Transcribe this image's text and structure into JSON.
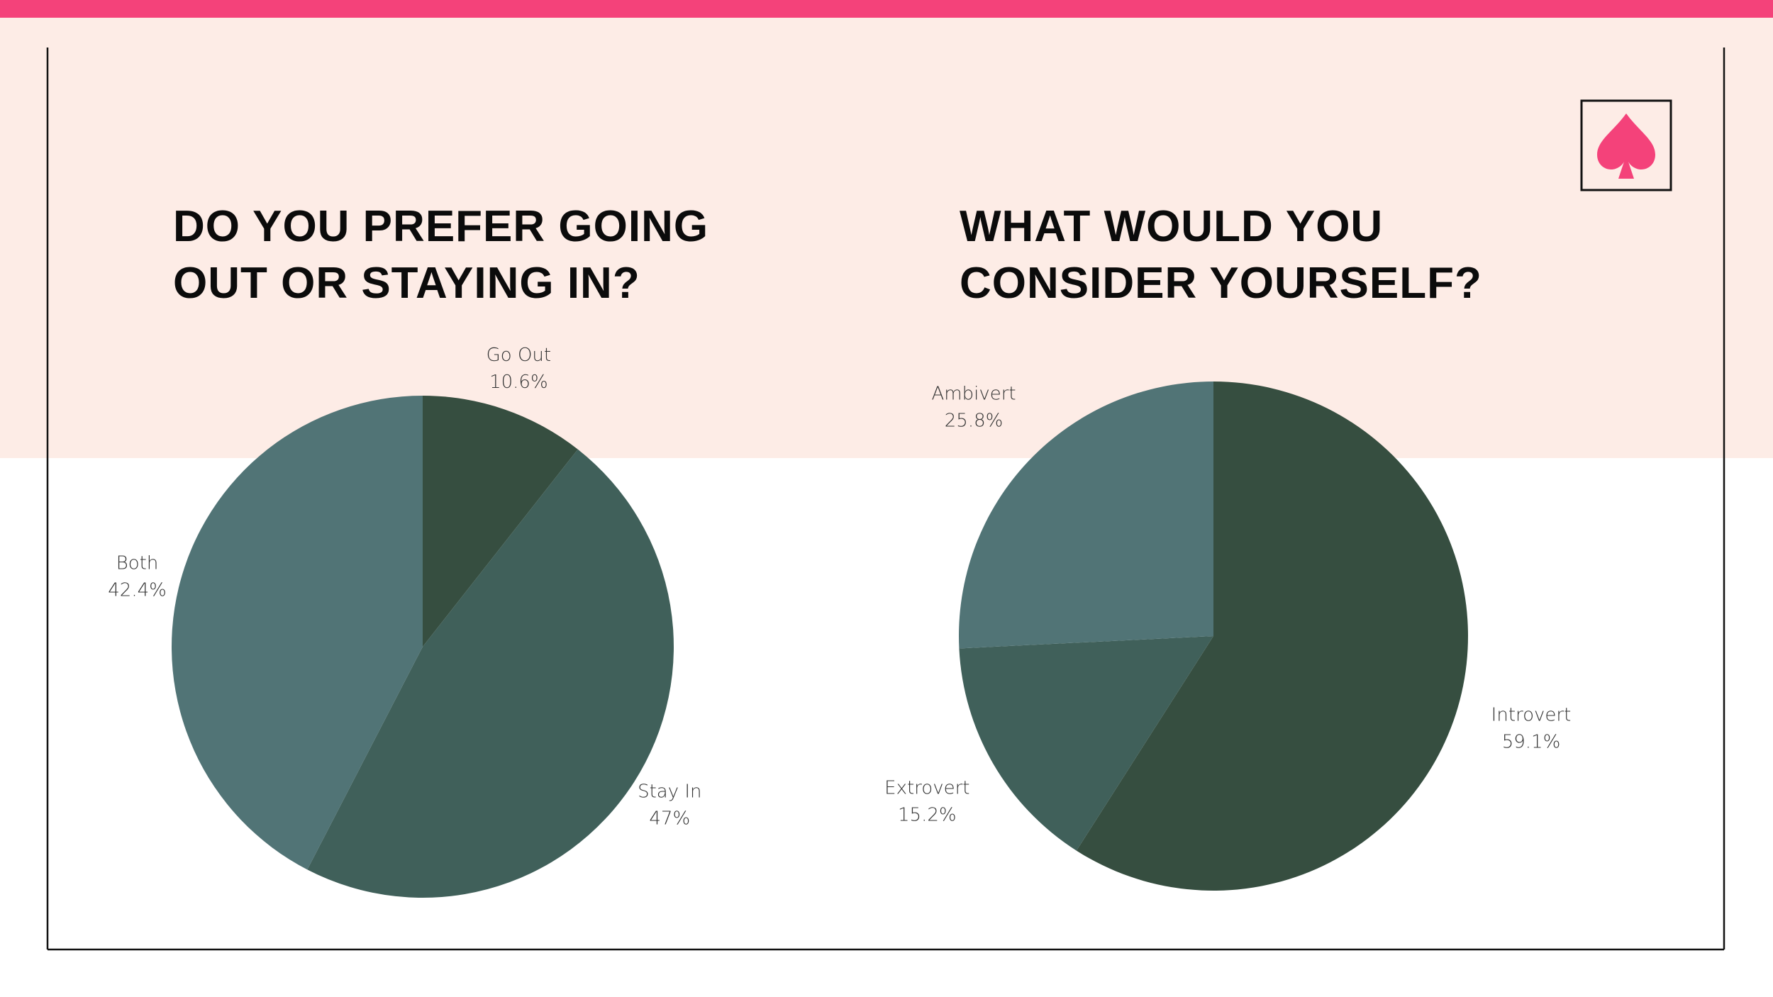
{
  "chart_data": [
    {
      "type": "pie",
      "title": "DO YOU PREFER GOING OUT OR STAYING IN?",
      "categories": [
        "Go Out",
        "Stay In",
        "Both"
      ],
      "values": [
        10.6,
        47,
        42.4
      ],
      "value_labels": [
        "10.6%",
        "47%",
        "42.4%"
      ],
      "colors": [
        "#364e40",
        "#40605a",
        "#517476"
      ]
    },
    {
      "type": "pie",
      "title": "WHAT WOULD YOU CONSIDER YOURSELF?",
      "categories": [
        "Introvert",
        "Extrovert",
        "Ambivert"
      ],
      "values": [
        59.1,
        15.2,
        25.8
      ],
      "value_labels": [
        "59.1%",
        "15.2%",
        "25.8%"
      ],
      "colors": [
        "#364e40",
        "#40605a",
        "#517476"
      ]
    }
  ]
}
